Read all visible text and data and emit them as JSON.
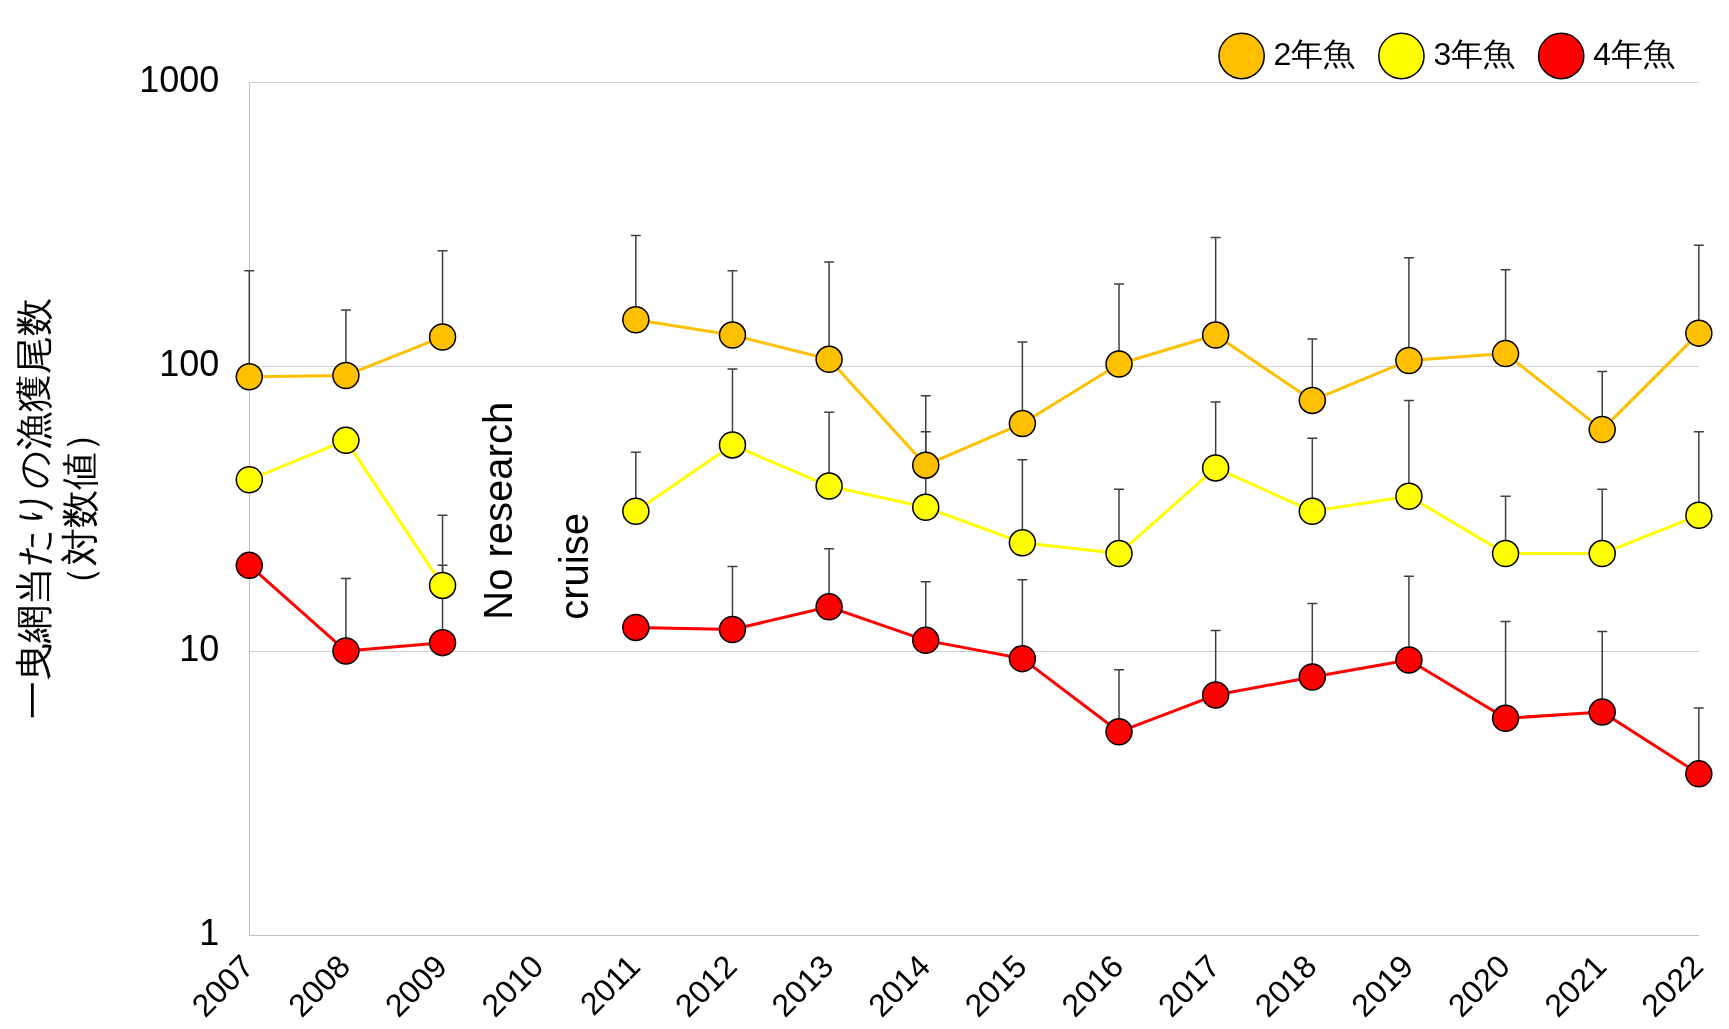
{
  "chart_data": {
    "type": "line",
    "ylabel": "一曳網当たりの漁獲尾数（対数値）",
    "categories": [
      "2007",
      "2008",
      "2009",
      "2010",
      "2011",
      "2012",
      "2013",
      "2014",
      "2015",
      "2016",
      "2017",
      "2018",
      "2019",
      "2020",
      "2021",
      "2022"
    ],
    "series": [
      {
        "name": "2年魚",
        "color": "#ffc000",
        "values": [
          92,
          93,
          127,
          null,
          146,
          129,
          106,
          45,
          63,
          102,
          129,
          76,
          105,
          111,
          60,
          131
        ],
        "errors": [
          [
            92,
            217
          ],
          [
            93,
            158
          ],
          [
            127,
            255
          ],
          null,
          [
            146,
            289
          ],
          [
            129,
            217
          ],
          [
            106,
            233
          ],
          [
            45,
            79
          ],
          [
            63,
            122
          ],
          [
            102,
            195
          ],
          [
            129,
            284
          ],
          [
            76,
            125
          ],
          [
            105,
            241
          ],
          [
            111,
            219
          ],
          [
            60,
            96
          ],
          [
            131,
            267
          ]
        ]
      },
      {
        "name": "3年魚",
        "color": "#ffff00",
        "values": [
          40,
          55,
          17,
          null,
          31,
          53,
          38,
          32,
          24,
          22,
          44,
          31,
          35,
          22,
          22,
          30
        ],
        "errors": [
          null,
          null,
          [
            17,
            30
          ],
          null,
          [
            31,
            50
          ],
          [
            53,
            98
          ],
          [
            38,
            69
          ],
          [
            32,
            59
          ],
          [
            24,
            47
          ],
          [
            22,
            37
          ],
          [
            44,
            75
          ],
          [
            31,
            56
          ],
          [
            35,
            76
          ],
          [
            22,
            35
          ],
          [
            22,
            37
          ],
          [
            30,
            59
          ]
        ]
      },
      {
        "name": "4年魚",
        "color": "#ff0000",
        "values": [
          20,
          10,
          10.7,
          null,
          12.1,
          11.9,
          14.3,
          10.9,
          9.4,
          5.2,
          7.0,
          8.1,
          9.3,
          5.8,
          6.1,
          3.7
        ],
        "errors": [
          null,
          [
            10,
            18
          ],
          [
            10.7,
            20
          ],
          null,
          null,
          [
            11.9,
            19.8
          ],
          [
            14.3,
            22.9
          ],
          [
            10.9,
            17.5
          ],
          [
            9.4,
            17.8
          ],
          [
            5.2,
            8.6
          ],
          [
            7.0,
            11.8
          ],
          [
            8.1,
            14.7
          ],
          [
            9.3,
            18.3
          ],
          [
            5.8,
            12.7
          ],
          [
            6.1,
            11.7
          ],
          [
            3.7,
            6.3
          ]
        ]
      }
    ],
    "log": true,
    "ylim": [
      1,
      1000
    ],
    "yticks": [
      1,
      10,
      100,
      1000
    ],
    "grid": "y",
    "legend": "top right",
    "marker": "circle",
    "line_style": "solid",
    "annotations": [
      "No research cruise"
    ]
  }
}
